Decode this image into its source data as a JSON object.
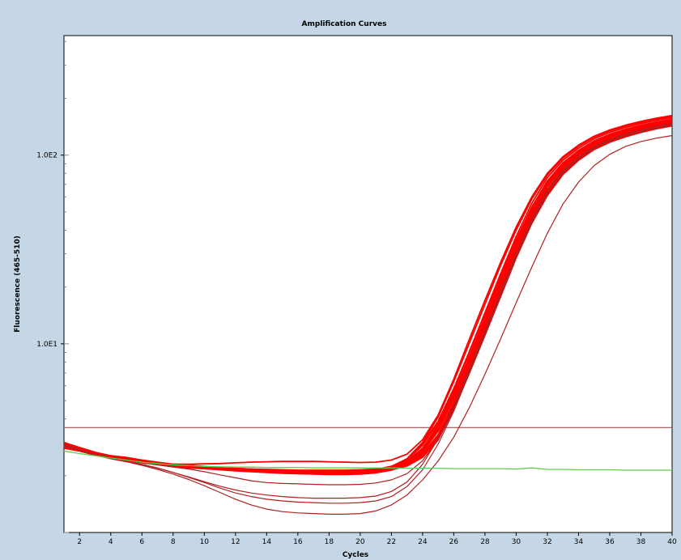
{
  "chart_data": {
    "type": "line",
    "title": "Amplification Curves",
    "xlabel": "Cycles",
    "ylabel": "Fluorescence (465-510)",
    "xlim": [
      1,
      40
    ],
    "ylim": [
      1.0,
      430
    ],
    "yscale": "log",
    "grid": false,
    "legend": "none",
    "x_ticks": [
      2,
      4,
      6,
      8,
      10,
      12,
      14,
      16,
      18,
      20,
      22,
      24,
      26,
      28,
      30,
      32,
      34,
      36,
      38,
      40
    ],
    "y_tick_labels": [
      {
        "value": 10,
        "label": "1.0E1"
      },
      {
        "value": 100,
        "label": "1.0E2"
      }
    ],
    "colors": {
      "amplification": "#ff0000",
      "amplification_outlier": "#b02020",
      "negative": "#5ecf4a",
      "threshold": "#a05050",
      "background": "#c5d7e7",
      "plot_area": "#ffffff"
    },
    "x": [
      1,
      2,
      3,
      4,
      5,
      6,
      7,
      8,
      9,
      10,
      11,
      12,
      13,
      14,
      15,
      16,
      17,
      18,
      19,
      20,
      21,
      22,
      23,
      24,
      25,
      26,
      27,
      28,
      29,
      30,
      31,
      32,
      33,
      34,
      35,
      36,
      37,
      38,
      39,
      40
    ],
    "threshold": 3.6,
    "series": [
      {
        "values": [
          2.9,
          2.75,
          2.6,
          2.5,
          2.45,
          2.38,
          2.32,
          2.28,
          2.24,
          2.22,
          2.2,
          2.18,
          2.16,
          2.15,
          2.14,
          2.13,
          2.12,
          2.12,
          2.12,
          2.13,
          2.15,
          2.2,
          2.35,
          2.7,
          3.5,
          5.2,
          8.2,
          13,
          21,
          33,
          50,
          70,
          88,
          103,
          116,
          126,
          134,
          141,
          147,
          152
        ]
      },
      {
        "values": [
          2.95,
          2.8,
          2.65,
          2.55,
          2.5,
          2.42,
          2.36,
          2.3,
          2.27,
          2.24,
          2.21,
          2.19,
          2.17,
          2.15,
          2.13,
          2.12,
          2.1,
          2.1,
          2.1,
          2.11,
          2.13,
          2.18,
          2.3,
          2.6,
          3.3,
          4.9,
          7.7,
          12.2,
          19.5,
          31,
          47,
          66,
          84,
          99,
          112,
          122,
          130,
          137,
          143,
          148
        ]
      },
      {
        "values": [
          2.85,
          2.72,
          2.58,
          2.48,
          2.42,
          2.35,
          2.3,
          2.25,
          2.22,
          2.19,
          2.17,
          2.15,
          2.13,
          2.11,
          2.1,
          2.09,
          2.08,
          2.08,
          2.08,
          2.09,
          2.12,
          2.16,
          2.28,
          2.55,
          3.2,
          4.7,
          7.3,
          11.6,
          18.5,
          29.5,
          45,
          63,
          81,
          96,
          109,
          119,
          127,
          134,
          140,
          145
        ]
      },
      {
        "values": [
          3.0,
          2.82,
          2.66,
          2.55,
          2.48,
          2.4,
          2.34,
          2.29,
          2.25,
          2.22,
          2.2,
          2.17,
          2.15,
          2.13,
          2.12,
          2.11,
          2.11,
          2.11,
          2.11,
          2.12,
          2.16,
          2.24,
          2.45,
          2.95,
          3.9,
          5.8,
          9.1,
          14.3,
          22.8,
          35.5,
          53,
          73,
          91,
          106,
          119,
          129,
          137,
          144,
          150,
          155
        ]
      },
      {
        "values": [
          2.9,
          2.77,
          2.62,
          2.52,
          2.45,
          2.37,
          2.31,
          2.26,
          2.23,
          2.21,
          2.19,
          2.17,
          2.15,
          2.14,
          2.13,
          2.12,
          2.11,
          2.11,
          2.11,
          2.12,
          2.14,
          2.19,
          2.32,
          2.66,
          3.45,
          5.1,
          8.0,
          12.6,
          20.2,
          32,
          48.5,
          68,
          86,
          101,
          114,
          124,
          132,
          139,
          145,
          150
        ]
      },
      {
        "values": [
          2.8,
          2.7,
          2.57,
          2.47,
          2.41,
          2.34,
          2.29,
          2.24,
          2.2,
          2.18,
          2.16,
          2.14,
          2.12,
          2.1,
          2.09,
          2.08,
          2.07,
          2.07,
          2.07,
          2.08,
          2.1,
          2.15,
          2.25,
          2.5,
          3.1,
          4.5,
          7.0,
          11.1,
          17.8,
          28.5,
          43.5,
          61,
          79,
          94,
          107,
          117,
          125,
          132,
          138,
          143
        ]
      },
      {
        "values": [
          2.95,
          2.8,
          2.64,
          2.53,
          2.46,
          2.38,
          2.32,
          2.27,
          2.24,
          2.21,
          2.19,
          2.17,
          2.15,
          2.13,
          2.12,
          2.11,
          2.1,
          2.1,
          2.1,
          2.11,
          2.14,
          2.2,
          2.38,
          2.8,
          3.7,
          5.5,
          8.6,
          13.6,
          21.8,
          34,
          51,
          71,
          89,
          104,
          117,
          127,
          135,
          142,
          148,
          153
        ]
      },
      {
        "values": [
          2.88,
          2.74,
          2.6,
          2.5,
          2.43,
          2.36,
          2.3,
          2.26,
          2.22,
          2.2,
          2.18,
          2.16,
          2.14,
          2.12,
          2.11,
          2.1,
          2.09,
          2.09,
          2.09,
          2.1,
          2.13,
          2.17,
          2.3,
          2.6,
          3.3,
          4.85,
          7.6,
          12,
          19.2,
          30.5,
          46.5,
          65,
          83,
          98,
          111,
          121,
          129,
          136,
          142,
          147
        ]
      },
      {
        "values": [
          2.85,
          2.72,
          2.6,
          2.5,
          2.43,
          2.36,
          2.31,
          2.27,
          2.24,
          2.22,
          2.2,
          2.18,
          2.17,
          2.16,
          2.15,
          2.14,
          2.14,
          2.14,
          2.14,
          2.15,
          2.17,
          2.22,
          2.34,
          2.62,
          3.25,
          4.6,
          7.1,
          11.2,
          18,
          28.8,
          44,
          62,
          80,
          95,
          108,
          118,
          126,
          133,
          139,
          144
        ]
      },
      {
        "values": [
          2.92,
          2.78,
          2.63,
          2.52,
          2.45,
          2.37,
          2.31,
          2.26,
          2.22,
          2.19,
          2.16,
          2.13,
          2.11,
          2.09,
          2.08,
          2.07,
          2.06,
          2.06,
          2.06,
          2.07,
          2.1,
          2.16,
          2.33,
          2.72,
          3.6,
          5.35,
          8.4,
          13.2,
          21,
          33,
          49.5,
          69,
          87,
          102,
          115,
          125,
          133,
          140,
          146,
          151
        ]
      },
      {
        "values": [
          2.9,
          2.76,
          2.62,
          2.52,
          2.45,
          2.38,
          2.33,
          2.28,
          2.25,
          2.22,
          2.2,
          2.18,
          2.16,
          2.15,
          2.14,
          2.13,
          2.12,
          2.12,
          2.12,
          2.13,
          2.15,
          2.21,
          2.36,
          2.74,
          3.6,
          5.4,
          8.5,
          13.4,
          21.4,
          33.5,
          50.5,
          70,
          88,
          103,
          116,
          126,
          134,
          141,
          147,
          152
        ]
      },
      {
        "values": [
          2.82,
          2.7,
          2.58,
          2.48,
          2.42,
          2.35,
          2.29,
          2.24,
          2.21,
          2.18,
          2.16,
          2.14,
          2.12,
          2.11,
          2.1,
          2.09,
          2.08,
          2.08,
          2.08,
          2.09,
          2.11,
          2.16,
          2.27,
          2.55,
          3.15,
          4.6,
          7.2,
          11.4,
          18.2,
          29,
          44.5,
          62.5,
          80.5,
          95.5,
          108.5,
          118.5,
          126.5,
          133.5,
          139.5,
          144.5
        ]
      },
      {
        "values": [
          2.95,
          2.8,
          2.65,
          2.54,
          2.47,
          2.39,
          2.33,
          2.28,
          2.24,
          2.21,
          2.19,
          2.17,
          2.15,
          2.13,
          2.12,
          2.11,
          2.1,
          2.1,
          2.1,
          2.12,
          2.15,
          2.23,
          2.42,
          2.9,
          3.85,
          5.75,
          9.0,
          14.2,
          22.6,
          35.2,
          52.5,
          72.5,
          90.5,
          105.5,
          118.5,
          128.5,
          136.5,
          143.5,
          149.5,
          154.5
        ]
      },
      {
        "values": [
          2.88,
          2.75,
          2.6,
          2.5,
          2.44,
          2.36,
          2.3,
          2.25,
          2.22,
          2.19,
          2.17,
          2.15,
          2.13,
          2.12,
          2.11,
          2.1,
          2.09,
          2.09,
          2.09,
          2.1,
          2.12,
          2.17,
          2.29,
          2.58,
          3.25,
          4.75,
          7.4,
          11.7,
          18.8,
          29.8,
          45.5,
          64,
          82,
          97,
          110,
          120,
          128,
          135,
          141,
          146
        ]
      },
      {
        "values": [
          2.92,
          2.78,
          2.63,
          2.52,
          2.45,
          2.37,
          2.31,
          2.26,
          2.23,
          2.2,
          2.18,
          2.16,
          2.14,
          2.12,
          2.11,
          2.1,
          2.09,
          2.09,
          2.09,
          2.1,
          2.13,
          2.19,
          2.35,
          2.73,
          3.55,
          5.25,
          8.25,
          13,
          20.8,
          32.8,
          49.5,
          69.5,
          87.5,
          102.5,
          115.5,
          125.5,
          133.5,
          140.5,
          146.5,
          151.5
        ]
      },
      {
        "values": [
          2.8,
          2.7,
          2.58,
          2.49,
          2.43,
          2.37,
          2.32,
          2.3,
          2.3,
          2.31,
          2.32,
          2.34,
          2.36,
          2.37,
          2.38,
          2.38,
          2.38,
          2.37,
          2.36,
          2.35,
          2.36,
          2.42,
          2.6,
          3.1,
          4.2,
          6.5,
          10.6,
          17,
          27,
          41.5,
          60,
          80,
          98,
          113,
          126,
          136,
          144,
          151,
          157,
          162
        ]
      },
      {
        "values": [
          2.9,
          2.76,
          2.62,
          2.51,
          2.44,
          2.36,
          2.3,
          2.25,
          2.21,
          2.18,
          2.15,
          2.12,
          2.1,
          2.08,
          2.06,
          2.05,
          2.04,
          2.03,
          2.03,
          2.04,
          2.07,
          2.14,
          2.32,
          2.78,
          3.75,
          5.7,
          9.1,
          14.6,
          23.5,
          37,
          55.5,
          76,
          94,
          109,
          122,
          132,
          140,
          147,
          153,
          158
        ]
      },
      {
        "values": [
          2.85,
          2.72,
          2.59,
          2.49,
          2.43,
          2.36,
          2.31,
          2.27,
          2.24,
          2.21,
          2.19,
          2.17,
          2.15,
          2.14,
          2.13,
          2.12,
          2.12,
          2.12,
          2.12,
          2.13,
          2.16,
          2.24,
          2.46,
          3.0,
          4.1,
          6.3,
          10.1,
          16.2,
          26,
          40,
          58.5,
          78.5,
          96.5,
          111.5,
          124.5,
          134.5,
          142.5,
          149.5,
          155.5,
          160.5
        ]
      },
      {
        "values": [
          2.9,
          2.75,
          2.6,
          2.49,
          2.42,
          2.35,
          2.28,
          2.22,
          2.17,
          2.1,
          2.02,
          1.95,
          1.88,
          1.84,
          1.82,
          1.81,
          1.8,
          1.79,
          1.79,
          1.8,
          1.83,
          1.9,
          2.05,
          2.4,
          3.1,
          4.6,
          7.2,
          11.5,
          18.5,
          29.5,
          45,
          64,
          82,
          97,
          110,
          120,
          128,
          135,
          141,
          146
        ]
      },
      {
        "values": [
          2.88,
          2.73,
          2.58,
          2.47,
          2.39,
          2.3,
          2.2,
          2.08,
          1.96,
          1.84,
          1.72,
          1.62,
          1.55,
          1.5,
          1.47,
          1.45,
          1.44,
          1.43,
          1.43,
          1.44,
          1.47,
          1.55,
          1.75,
          2.15,
          2.95,
          4.4,
          7.0,
          11.2,
          18,
          28.5,
          43.5,
          62,
          80,
          95,
          108,
          118,
          126,
          133,
          139,
          144
        ]
      },
      {
        "values": [
          2.87,
          2.72,
          2.57,
          2.46,
          2.38,
          2.29,
          2.19,
          2.08,
          1.97,
          1.86,
          1.76,
          1.68,
          1.62,
          1.58,
          1.55,
          1.53,
          1.52,
          1.52,
          1.52,
          1.53,
          1.56,
          1.65,
          1.85,
          2.3,
          3.15,
          4.7,
          7.4,
          11.8,
          19,
          30,
          46,
          65,
          83,
          98,
          111,
          121,
          129,
          136,
          142,
          147
        ]
      },
      {
        "values": [
          2.9,
          2.74,
          2.58,
          2.46,
          2.37,
          2.27,
          2.16,
          2.04,
          1.91,
          1.77,
          1.63,
          1.5,
          1.4,
          1.33,
          1.29,
          1.27,
          1.26,
          1.25,
          1.25,
          1.26,
          1.3,
          1.4,
          1.58,
          1.9,
          2.4,
          3.2,
          4.6,
          6.9,
          10.6,
          16.5,
          25.5,
          38.5,
          55,
          72,
          88,
          101,
          111,
          118,
          123,
          127
        ]
      }
    ],
    "negative_control": {
      "values": [
        2.7,
        2.62,
        2.55,
        2.48,
        2.42,
        2.36,
        2.32,
        2.28,
        2.26,
        2.24,
        2.23,
        2.22,
        2.22,
        2.21,
        2.21,
        2.21,
        2.2,
        2.2,
        2.2,
        2.2,
        2.2,
        2.2,
        2.19,
        2.19,
        2.19,
        2.18,
        2.18,
        2.18,
        2.18,
        2.17,
        2.2,
        2.16,
        2.16,
        2.15,
        2.15,
        2.15,
        2.14,
        2.14,
        2.14,
        2.14
      ]
    }
  }
}
